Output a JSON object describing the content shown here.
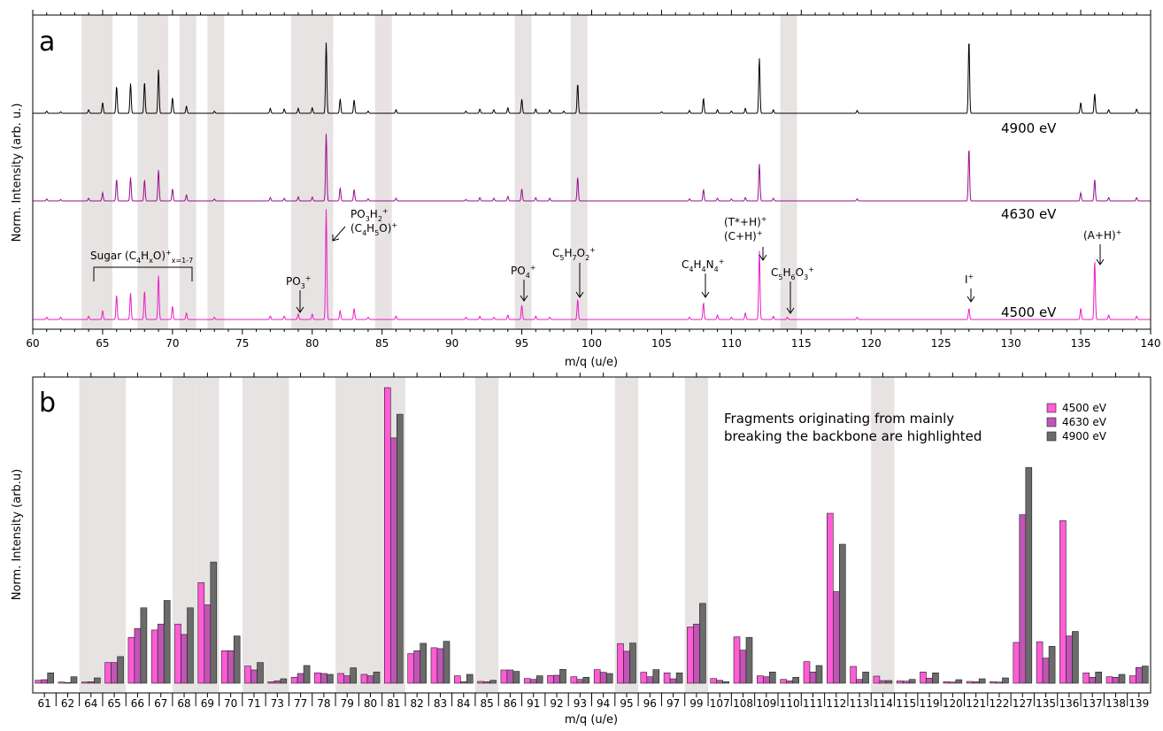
{
  "figure": {
    "panel_a": {
      "letter": "a",
      "xlabel": "m/q (u/e)",
      "ylabel": "Norm. Intensity (arb. u.)",
      "energy_labels": [
        "4900 eV",
        "4630 eV",
        "4500 eV"
      ],
      "annotations": {
        "sugar": {
          "main": "Sugar (C",
          "sub1": "4",
          "mid": "H",
          "sub2": "x",
          "end": "O)",
          "sup": "+",
          "subend": "x=1-7"
        },
        "po3": {
          "main": "PO",
          "sub": "3",
          "sup": "+"
        },
        "po3h2_line1": {
          "main": "PO",
          "sub1": "3",
          "mid": "H",
          "sub2": "2",
          "sup": "+"
        },
        "po3h2_line2": {
          "main": "(C",
          "sub1": "4",
          "mid": "H",
          "sub2": "5",
          "end": "O)",
          "sup": "+"
        },
        "po4": {
          "main": "PO",
          "sub": "4",
          "sup": "+"
        },
        "c5h7o2": {
          "a": "C",
          "s1": "5",
          "b": "H",
          "s2": "7",
          "c": "O",
          "s3": "2",
          "sup": "+"
        },
        "c4h4n4": {
          "a": "C",
          "s1": "4",
          "b": "H",
          "s2": "4",
          "c": "N",
          "s3": "4",
          "sup": "+"
        },
        "tstar_line1": {
          "main": "(T*+H)",
          "sup": "+"
        },
        "tstar_line2": {
          "main": "(C+H)",
          "sup": "+"
        },
        "c5h6o3": {
          "a": "C",
          "s1": "5",
          "b": "H",
          "s2": "6",
          "c": "O",
          "s3": "3",
          "sup": "+"
        },
        "iodine": {
          "main": "I",
          "sup": "+"
        },
        "aplush": {
          "main": "(A+H)",
          "sup": "+"
        }
      }
    },
    "panel_b": {
      "letter": "b",
      "xlabel": "m/q (u/e)",
      "ylabel": "Norm. Intensity (arb.u)",
      "note_line1": "Fragments originating from mainly",
      "note_line2": "breaking the backbone are highlighted"
    },
    "colors": {
      "e4500": "#ff5cd6",
      "e4630": "#c155b5",
      "e4900": "#6b6b6b",
      "highlight": "#e8e3e3",
      "trace4900": "#000000",
      "trace4630": "#990e8f",
      "trace4500": "#e91ec5"
    }
  },
  "chart_data": [
    {
      "type": "line",
      "panel": "a",
      "xlim": [
        60,
        140
      ],
      "x_ticks": [
        60,
        65,
        70,
        75,
        80,
        85,
        90,
        95,
        100,
        105,
        110,
        115,
        120,
        125,
        130,
        135,
        140
      ],
      "highlight_ranges": [
        [
          63.5,
          65.7
        ],
        [
          67.5,
          69.7
        ],
        [
          70.5,
          71.7
        ],
        [
          72.5,
          73.7
        ],
        [
          78.5,
          81.5
        ],
        [
          84.5,
          85.7
        ],
        [
          94.5,
          95.7
        ],
        [
          98.5,
          99.7
        ],
        [
          113.5,
          114.7
        ]
      ],
      "series": [
        {
          "name": "4900 eV",
          "peaks": [
            [
              61,
              0.03
            ],
            [
              62,
              0.02
            ],
            [
              64,
              0.05
            ],
            [
              65,
              0.15
            ],
            [
              66,
              0.38
            ],
            [
              67,
              0.42
            ],
            [
              68,
              0.44
            ],
            [
              69,
              0.62
            ],
            [
              70,
              0.22
            ],
            [
              71,
              0.1
            ],
            [
              73,
              0.03
            ],
            [
              77,
              0.07
            ],
            [
              78,
              0.06
            ],
            [
              79,
              0.07
            ],
            [
              80,
              0.08
            ],
            [
              81,
              1.0
            ],
            [
              82,
              0.2
            ],
            [
              83,
              0.19
            ],
            [
              84,
              0.03
            ],
            [
              86,
              0.05
            ],
            [
              91,
              0.03
            ],
            [
              92,
              0.06
            ],
            [
              93,
              0.05
            ],
            [
              94,
              0.08
            ],
            [
              95,
              0.2
            ],
            [
              96,
              0.06
            ],
            [
              97,
              0.05
            ],
            [
              98,
              0.03
            ],
            [
              99,
              0.42
            ],
            [
              105,
              0.02
            ],
            [
              107,
              0.04
            ],
            [
              108,
              0.21
            ],
            [
              109,
              0.05
            ],
            [
              110,
              0.03
            ],
            [
              111,
              0.07
            ],
            [
              112,
              0.78
            ],
            [
              113,
              0.05
            ],
            [
              119,
              0.04
            ],
            [
              127,
              1.04
            ],
            [
              135,
              0.15
            ],
            [
              136,
              0.28
            ],
            [
              137,
              0.05
            ],
            [
              139,
              0.06
            ]
          ]
        },
        {
          "name": "4630 eV",
          "peaks": [
            [
              61,
              0.03
            ],
            [
              62,
              0.02
            ],
            [
              64,
              0.04
            ],
            [
              65,
              0.12
            ],
            [
              66,
              0.32
            ],
            [
              67,
              0.35
            ],
            [
              68,
              0.31
            ],
            [
              69,
              0.46
            ],
            [
              70,
              0.18
            ],
            [
              71,
              0.09
            ],
            [
              73,
              0.03
            ],
            [
              77,
              0.05
            ],
            [
              78,
              0.04
            ],
            [
              79,
              0.06
            ],
            [
              80,
              0.06
            ],
            [
              81,
              1.0
            ],
            [
              82,
              0.19
            ],
            [
              83,
              0.17
            ],
            [
              84,
              0.03
            ],
            [
              86,
              0.04
            ],
            [
              91,
              0.02
            ],
            [
              92,
              0.05
            ],
            [
              93,
              0.04
            ],
            [
              94,
              0.07
            ],
            [
              95,
              0.18
            ],
            [
              96,
              0.05
            ],
            [
              97,
              0.04
            ],
            [
              99,
              0.35
            ],
            [
              107,
              0.03
            ],
            [
              108,
              0.17
            ],
            [
              109,
              0.04
            ],
            [
              110,
              0.03
            ],
            [
              111,
              0.05
            ],
            [
              112,
              0.55
            ],
            [
              113,
              0.04
            ],
            [
              119,
              0.03
            ],
            [
              127,
              0.78
            ],
            [
              135,
              0.12
            ],
            [
              136,
              0.32
            ],
            [
              137,
              0.05
            ],
            [
              139,
              0.05
            ]
          ]
        },
        {
          "name": "4500 eV",
          "peaks": [
            [
              61,
              0.02
            ],
            [
              62,
              0.02
            ],
            [
              64,
              0.03
            ],
            [
              65,
              0.08
            ],
            [
              66,
              0.22
            ],
            [
              67,
              0.24
            ],
            [
              68,
              0.26
            ],
            [
              69,
              0.4
            ],
            [
              70,
              0.12
            ],
            [
              71,
              0.06
            ],
            [
              73,
              0.02
            ],
            [
              77,
              0.03
            ],
            [
              78,
              0.03
            ],
            [
              79,
              0.05
            ],
            [
              80,
              0.05
            ],
            [
              81,
              1.0
            ],
            [
              82,
              0.08
            ],
            [
              83,
              0.1
            ],
            [
              84,
              0.02
            ],
            [
              86,
              0.03
            ],
            [
              91,
              0.02
            ],
            [
              92,
              0.03
            ],
            [
              93,
              0.02
            ],
            [
              94,
              0.04
            ],
            [
              95,
              0.13
            ],
            [
              96,
              0.03
            ],
            [
              97,
              0.02
            ],
            [
              99,
              0.18
            ],
            [
              107,
              0.02
            ],
            [
              108,
              0.15
            ],
            [
              109,
              0.04
            ],
            [
              110,
              0.02
            ],
            [
              111,
              0.06
            ],
            [
              112,
              0.62
            ],
            [
              113,
              0.03
            ],
            [
              114,
              0.02
            ],
            [
              119,
              0.02
            ],
            [
              127,
              0.1
            ],
            [
              135,
              0.1
            ],
            [
              136,
              0.53
            ],
            [
              137,
              0.04
            ],
            [
              139,
              0.03
            ]
          ]
        }
      ]
    },
    {
      "type": "bar",
      "panel": "b",
      "categories": [
        "61",
        "62",
        "64",
        "65",
        "66",
        "67",
        "68",
        "69",
        "70",
        "71",
        "73",
        "77",
        "78",
        "79",
        "80",
        "81",
        "82",
        "83",
        "84",
        "85",
        "86",
        "91",
        "92",
        "93",
        "94",
        "95",
        "96",
        "97",
        "99",
        "107",
        "108",
        "109",
        "110",
        "111",
        "112",
        "113",
        "114",
        "115",
        "119",
        "120",
        "121",
        "122",
        "127",
        "135",
        "136",
        "137",
        "138",
        "139"
      ],
      "highlighted_categories": [
        "64",
        "65",
        "68",
        "69",
        "71",
        "73",
        "79",
        "80",
        "81",
        "85",
        "95",
        "99",
        "114"
      ],
      "ylim": [
        0,
        1.0
      ],
      "series": [
        {
          "name": "4500 eV",
          "values": [
            0.01,
            0.004,
            0.004,
            0.07,
            0.155,
            0.18,
            0.2,
            0.34,
            0.11,
            0.058,
            0.005,
            0.02,
            0.035,
            0.033,
            0.03,
            1.0,
            0.1,
            0.12,
            0.025,
            0.006,
            0.045,
            0.016,
            0.026,
            0.022,
            0.046,
            0.134,
            0.037,
            0.035,
            0.19,
            0.016,
            0.157,
            0.025,
            0.013,
            0.073,
            0.575,
            0.057,
            0.024,
            0.008,
            0.038,
            0.005,
            0.006,
            0.005,
            0.138,
            0.14,
            0.55,
            0.035,
            0.022,
            0.025
          ]
        },
        {
          "name": "4630 eV",
          "values": [
            0.012,
            0.002,
            0.005,
            0.07,
            0.185,
            0.2,
            0.165,
            0.265,
            0.11,
            0.045,
            0.008,
            0.033,
            0.033,
            0.025,
            0.025,
            0.83,
            0.11,
            0.117,
            0.005,
            0.005,
            0.045,
            0.013,
            0.027,
            0.013,
            0.037,
            0.108,
            0.022,
            0.015,
            0.2,
            0.01,
            0.112,
            0.022,
            0.008,
            0.038,
            0.31,
            0.013,
            0.009,
            0.007,
            0.017,
            0.004,
            0.005,
            0.004,
            0.57,
            0.085,
            0.16,
            0.02,
            0.02,
            0.053
          ]
        },
        {
          "name": "4900 eV",
          "values": [
            0.035,
            0.022,
            0.018,
            0.09,
            0.255,
            0.28,
            0.255,
            0.41,
            0.16,
            0.07,
            0.015,
            0.06,
            0.03,
            0.052,
            0.038,
            0.91,
            0.135,
            0.142,
            0.03,
            0.01,
            0.04,
            0.025,
            0.047,
            0.02,
            0.033,
            0.136,
            0.046,
            0.035,
            0.27,
            0.005,
            0.155,
            0.038,
            0.02,
            0.06,
            0.47,
            0.038,
            0.009,
            0.013,
            0.035,
            0.012,
            0.015,
            0.018,
            0.73,
            0.125,
            0.175,
            0.038,
            0.03,
            0.058
          ]
        }
      ],
      "legend_position": "top-right"
    }
  ]
}
